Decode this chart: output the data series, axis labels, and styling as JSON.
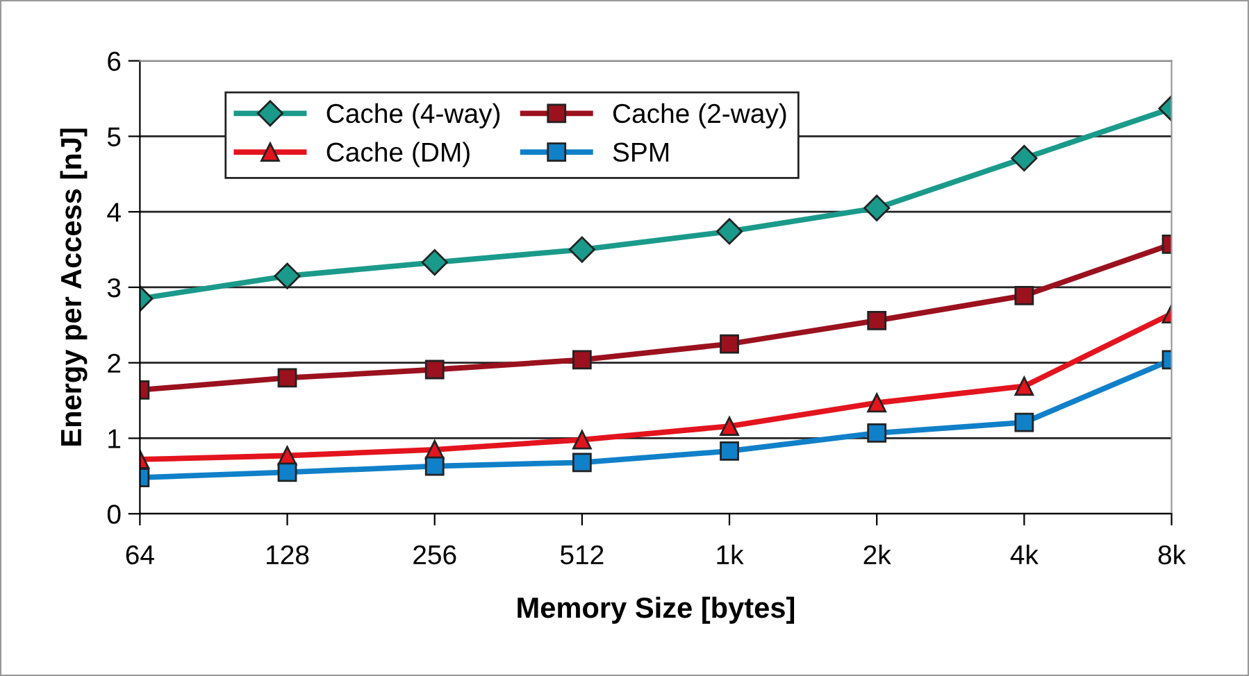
{
  "chart_data": {
    "type": "line",
    "xlabel": "Memory Size [bytes]",
    "ylabel": "Energy per Access [nJ]",
    "categories": [
      "64",
      "128",
      "256",
      "512",
      "1k",
      "2k",
      "4k",
      "8k"
    ],
    "ylim": [
      0,
      6
    ],
    "yticks": [
      0,
      1,
      2,
      3,
      4,
      5,
      6
    ],
    "grid": "y",
    "legend": "top left",
    "line_style": "solid",
    "series": [
      {
        "name": "Cache (4-way)",
        "color": "#1a9a8a",
        "marker": "diamond",
        "values": [
          2.85,
          3.15,
          3.33,
          3.5,
          3.74,
          4.05,
          4.71,
          5.37
        ]
      },
      {
        "name": "Cache (2-way)",
        "color": "#9b111e",
        "marker": "square",
        "values": [
          1.64,
          1.8,
          1.91,
          2.04,
          2.25,
          2.56,
          2.89,
          3.57
        ]
      },
      {
        "name": "Cache (DM)",
        "color": "#e3141e",
        "marker": "triangle",
        "values": [
          0.72,
          0.77,
          0.85,
          0.98,
          1.16,
          1.47,
          1.69,
          2.65
        ]
      },
      {
        "name": "SPM",
        "color": "#1080c8",
        "marker": "square",
        "values": [
          0.48,
          0.55,
          0.63,
          0.68,
          0.83,
          1.07,
          1.21,
          2.04
        ]
      }
    ]
  }
}
